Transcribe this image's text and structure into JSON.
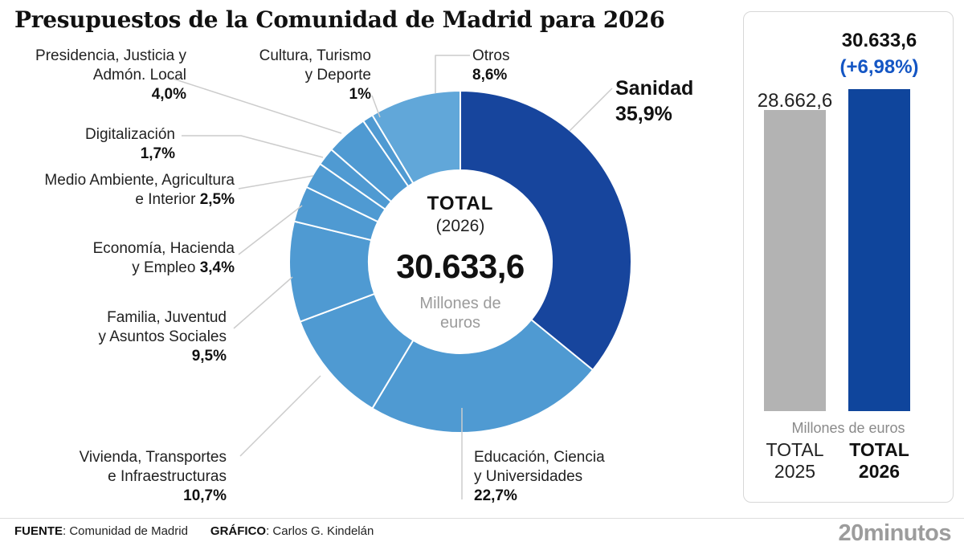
{
  "title": "Presupuestos de la Comunidad de Madrid para 2026",
  "colors": {
    "dark_blue": "#17459d",
    "light_blue": "#4f9ad2",
    "otros_blue": "#61a7d9",
    "bar_gray": "#b3b3b3",
    "bar_blue": "#0f459c",
    "accent_blue": "#1456c4",
    "leader_gray": "#cccccc"
  },
  "chart_data": [
    {
      "type": "pie",
      "subtype": "donut",
      "title": "Presupuestos de la Comunidad de Madrid para 2026",
      "unit": "Millones de euros",
      "center": {
        "label": "TOTAL",
        "year": "(2026)",
        "value": "30.633,6",
        "unit_lines": [
          "Millones de",
          "euros"
        ]
      },
      "legend_position": "callouts",
      "segments": [
        {
          "name": "Sanidad",
          "pct": 35.9,
          "pct_label": "35,9%",
          "lines": [
            "Sanidad"
          ],
          "color": "dark"
        },
        {
          "name": "Educación, Ciencia y Universidades",
          "pct": 22.7,
          "pct_label": "22,7%",
          "lines": [
            "Educación, Ciencia",
            "y Universidades"
          ],
          "color": "light"
        },
        {
          "name": "Vivienda, Transportes e Infraestructuras",
          "pct": 10.7,
          "pct_label": "10,7%",
          "lines": [
            "Vivienda, Transportes",
            "e Infraestructuras"
          ],
          "color": "light"
        },
        {
          "name": "Familia, Juventud y Asuntos Sociales",
          "pct": 9.5,
          "pct_label": "9,5%",
          "lines": [
            "Familia, Juventud",
            "y Asuntos Sociales"
          ],
          "color": "light"
        },
        {
          "name": "Economía, Hacienda y Empleo",
          "pct": 3.4,
          "pct_label": "3,4%",
          "lines": [
            "Economía, Hacienda",
            "y Empleo"
          ],
          "color": "light"
        },
        {
          "name": "Medio Ambiente, Agricultura e Interior",
          "pct": 2.5,
          "pct_label": "2,5%",
          "lines": [
            "Medio Ambiente, Agricultura",
            "e Interior"
          ],
          "color": "light"
        },
        {
          "name": "Digitalización",
          "pct": 1.7,
          "pct_label": "1,7%",
          "lines": [
            "Digitalización"
          ],
          "color": "light"
        },
        {
          "name": "Presidencia, Justicia y Admón. Local",
          "pct": 4.0,
          "pct_label": "4,0%",
          "lines": [
            "Presidencia, Justicia y",
            "Admón. Local"
          ],
          "color": "light"
        },
        {
          "name": "Cultura, Turismo y Deporte",
          "pct": 1.0,
          "pct_label": "1%",
          "lines": [
            "Cultura, Turismo",
            "y Deporte"
          ],
          "color": "light"
        },
        {
          "name": "Otros",
          "pct": 8.6,
          "pct_label": "8,6%",
          "lines": [
            "Otros"
          ],
          "color": "otros"
        }
      ]
    },
    {
      "type": "bar",
      "unit": "Millones de euros",
      "categories": [
        "TOTAL 2025",
        "TOTAL 2026"
      ],
      "label_lines": [
        [
          "TOTAL",
          "2025"
        ],
        [
          "TOTAL",
          "2026"
        ]
      ],
      "values": [
        28662.6,
        30633.6
      ],
      "value_labels": [
        "28.662,6",
        "30.633,6"
      ],
      "delta_label": "(+6,98%)",
      "bar_colors": [
        "gray",
        "blue"
      ],
      "ylim": [
        0,
        30633.6
      ],
      "grid": false
    }
  ],
  "footer": {
    "source_label": "FUENTE",
    "source_rest": ": Comunidad de Madrid",
    "credit_label": "GRÁFICO",
    "credit_rest": ": Carlos G. Kindelán",
    "brand": "20minutos"
  }
}
